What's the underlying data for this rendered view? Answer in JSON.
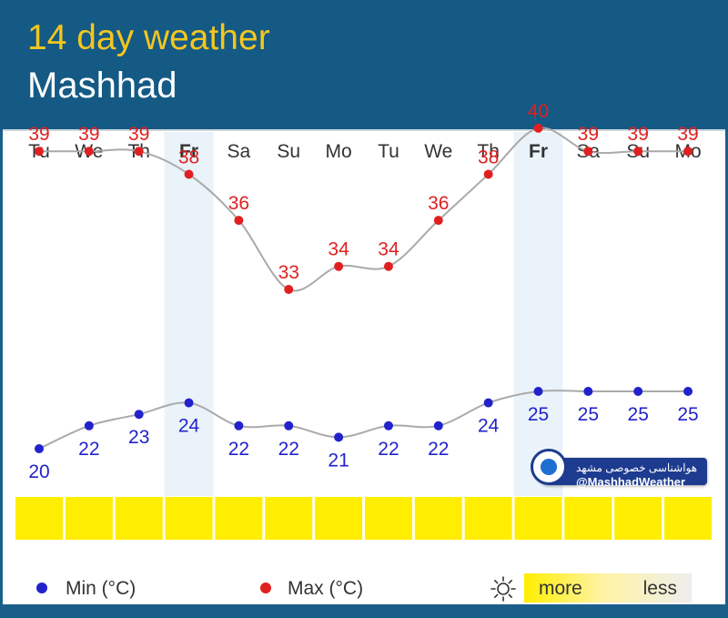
{
  "header": {
    "title": "14 day weather",
    "subtitle": "Mashhad"
  },
  "chart_data": {
    "type": "line",
    "categories": [
      "Tu",
      "We",
      "Th",
      "Fr",
      "Sa",
      "Su",
      "Mo",
      "Tu",
      "We",
      "Th",
      "Fr",
      "Sa",
      "Su",
      "Mo"
    ],
    "highlight_days": [
      "Fr"
    ],
    "series": [
      {
        "name": "Max (°C)",
        "color": "#e02020",
        "values": [
          39,
          39,
          39,
          38,
          36,
          33,
          34,
          34,
          36,
          38,
          40,
          39,
          39,
          39
        ]
      },
      {
        "name": "Min (°C)",
        "color": "#2222cc",
        "values": [
          20,
          22,
          23,
          24,
          22,
          22,
          21,
          22,
          22,
          24,
          25,
          25,
          25,
          25
        ]
      }
    ],
    "sunshine": {
      "colors": [
        "#ffee00",
        "#ffee00",
        "#ffee00",
        "#ffee00",
        "#ffee00",
        "#ffee00",
        "#ffee00",
        "#ffee00",
        "#ffee00",
        "#ffee00",
        "#ffee00",
        "#ffee00",
        "#ffee00",
        "#ffee00"
      ]
    },
    "grid": false
  },
  "legend": {
    "min_label": "Min (°C)",
    "max_label": "Max (°C)",
    "min_color": "#2222cc",
    "max_color": "#e02020",
    "sunshine_icon": "sun-icon",
    "scale_more": "more",
    "scale_less": "less"
  },
  "watermark": {
    "fa_text": "هواشناسی خصوصی مشهد",
    "handle": "@MashhadWeather"
  }
}
